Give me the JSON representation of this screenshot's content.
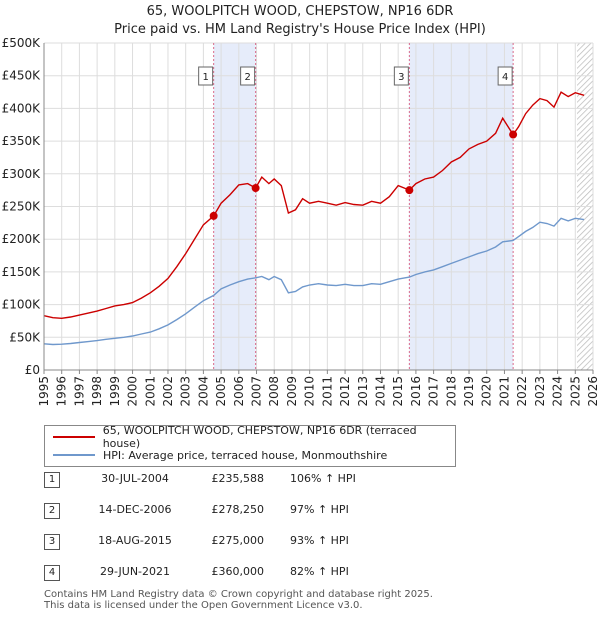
{
  "title_line1": "65, WOOLPITCH WOOD, CHEPSTOW, NP16 6DR",
  "title_line2": "Price paid vs. HM Land Registry's House Price Index (HPI)",
  "colors": {
    "price": "#cc0000",
    "hpi": "#6f98cc",
    "shade": "#e6ecfa",
    "marker_line": "#d96a8a"
  },
  "chart_data": {
    "type": "line",
    "y_tick_labels": [
      "£0",
      "£50K",
      "£100K",
      "£150K",
      "£200K",
      "£250K",
      "£300K",
      "£350K",
      "£400K",
      "£450K",
      "£500K"
    ],
    "y_ticks": [
      0,
      50000,
      100000,
      150000,
      200000,
      250000,
      300000,
      350000,
      400000,
      450000,
      500000
    ],
    "x_tick_labels": [
      "1995",
      "1996",
      "1997",
      "1998",
      "1999",
      "2000",
      "2001",
      "2002",
      "2003",
      "2004",
      "2005",
      "2006",
      "2007",
      "2008",
      "2009",
      "2010",
      "2011",
      "2012",
      "2013",
      "2014",
      "2015",
      "2016",
      "2017",
      "2018",
      "2019",
      "2020",
      "2021",
      "2022",
      "2023",
      "2024",
      "2025",
      "2026"
    ],
    "xlim": [
      1995,
      2026
    ],
    "ylim": [
      0,
      500000
    ],
    "series": [
      {
        "name": "65, WOOLPITCH WOOD, CHEPSTOW, NP16 6DR (terraced house)",
        "points": [
          [
            1995.0,
            83000
          ],
          [
            1995.5,
            80000
          ],
          [
            1996.0,
            79000
          ],
          [
            1996.5,
            81000
          ],
          [
            1997.0,
            84000
          ],
          [
            1997.5,
            87000
          ],
          [
            1998.0,
            90000
          ],
          [
            1998.5,
            94000
          ],
          [
            1999.0,
            98000
          ],
          [
            1999.5,
            100000
          ],
          [
            2000.0,
            103000
          ],
          [
            2000.5,
            110000
          ],
          [
            2001.0,
            118000
          ],
          [
            2001.5,
            128000
          ],
          [
            2002.0,
            140000
          ],
          [
            2002.5,
            158000
          ],
          [
            2003.0,
            178000
          ],
          [
            2003.5,
            200000
          ],
          [
            2004.0,
            222000
          ],
          [
            2004.58,
            235588
          ],
          [
            2005.0,
            255000
          ],
          [
            2005.5,
            268000
          ],
          [
            2006.0,
            283000
          ],
          [
            2006.5,
            285000
          ],
          [
            2006.95,
            278250
          ],
          [
            2007.3,
            295000
          ],
          [
            2007.7,
            285000
          ],
          [
            2008.0,
            292000
          ],
          [
            2008.4,
            282000
          ],
          [
            2008.8,
            240000
          ],
          [
            2009.2,
            245000
          ],
          [
            2009.6,
            262000
          ],
          [
            2010.0,
            255000
          ],
          [
            2010.5,
            258000
          ],
          [
            2011.0,
            255000
          ],
          [
            2011.5,
            252000
          ],
          [
            2012.0,
            256000
          ],
          [
            2012.5,
            253000
          ],
          [
            2013.0,
            252000
          ],
          [
            2013.5,
            258000
          ],
          [
            2014.0,
            255000
          ],
          [
            2014.5,
            265000
          ],
          [
            2015.0,
            282000
          ],
          [
            2015.63,
            275000
          ],
          [
            2016.0,
            285000
          ],
          [
            2016.5,
            292000
          ],
          [
            2017.0,
            295000
          ],
          [
            2017.5,
            305000
          ],
          [
            2018.0,
            318000
          ],
          [
            2018.5,
            325000
          ],
          [
            2019.0,
            338000
          ],
          [
            2019.5,
            345000
          ],
          [
            2020.0,
            350000
          ],
          [
            2020.5,
            362000
          ],
          [
            2020.9,
            385000
          ],
          [
            2021.49,
            360000
          ],
          [
            2021.8,
            372000
          ],
          [
            2022.2,
            392000
          ],
          [
            2022.6,
            405000
          ],
          [
            2023.0,
            415000
          ],
          [
            2023.4,
            412000
          ],
          [
            2023.8,
            402000
          ],
          [
            2024.2,
            425000
          ],
          [
            2024.6,
            418000
          ],
          [
            2025.0,
            424000
          ],
          [
            2025.5,
            420000
          ]
        ]
      },
      {
        "name": "HPI: Average price, terraced house, Monmouthshire",
        "points": [
          [
            1995.0,
            40000
          ],
          [
            1995.5,
            39000
          ],
          [
            1996.0,
            39500
          ],
          [
            1996.5,
            40500
          ],
          [
            1997.0,
            42000
          ],
          [
            1997.5,
            43500
          ],
          [
            1998.0,
            45000
          ],
          [
            1998.5,
            47000
          ],
          [
            1999.0,
            48500
          ],
          [
            1999.5,
            50000
          ],
          [
            2000.0,
            52000
          ],
          [
            2000.5,
            55000
          ],
          [
            2001.0,
            58000
          ],
          [
            2001.5,
            63000
          ],
          [
            2002.0,
            69000
          ],
          [
            2002.5,
            77000
          ],
          [
            2003.0,
            86000
          ],
          [
            2003.5,
            96000
          ],
          [
            2004.0,
            106000
          ],
          [
            2004.58,
            114000
          ],
          [
            2005.0,
            124000
          ],
          [
            2005.5,
            130000
          ],
          [
            2006.0,
            135000
          ],
          [
            2006.5,
            139000
          ],
          [
            2006.95,
            141000
          ],
          [
            2007.3,
            143000
          ],
          [
            2007.7,
            138000
          ],
          [
            2008.0,
            143000
          ],
          [
            2008.4,
            138000
          ],
          [
            2008.8,
            118000
          ],
          [
            2009.2,
            120000
          ],
          [
            2009.6,
            127000
          ],
          [
            2010.0,
            130000
          ],
          [
            2010.5,
            132000
          ],
          [
            2011.0,
            130000
          ],
          [
            2011.5,
            129000
          ],
          [
            2012.0,
            131000
          ],
          [
            2012.5,
            129000
          ],
          [
            2013.0,
            129000
          ],
          [
            2013.5,
            132000
          ],
          [
            2014.0,
            131000
          ],
          [
            2014.5,
            135000
          ],
          [
            2015.0,
            139000
          ],
          [
            2015.63,
            142000
          ],
          [
            2016.0,
            146000
          ],
          [
            2016.5,
            150000
          ],
          [
            2017.0,
            153000
          ],
          [
            2017.5,
            158000
          ],
          [
            2018.0,
            163000
          ],
          [
            2018.5,
            168000
          ],
          [
            2019.0,
            173000
          ],
          [
            2019.5,
            178000
          ],
          [
            2020.0,
            182000
          ],
          [
            2020.5,
            188000
          ],
          [
            2020.9,
            196000
          ],
          [
            2021.49,
            198000
          ],
          [
            2021.8,
            204000
          ],
          [
            2022.2,
            212000
          ],
          [
            2022.6,
            218000
          ],
          [
            2023.0,
            226000
          ],
          [
            2023.4,
            224000
          ],
          [
            2023.8,
            220000
          ],
          [
            2024.2,
            232000
          ],
          [
            2024.6,
            228000
          ],
          [
            2025.0,
            232000
          ],
          [
            2025.5,
            230000
          ]
        ]
      }
    ],
    "shaded_ranges": [
      [
        2004.58,
        2006.95
      ],
      [
        2015.63,
        2021.49
      ]
    ],
    "hatched_from": 2025.1,
    "sales": [
      {
        "label": "1",
        "x": 2004.58,
        "y": 235588
      },
      {
        "label": "2",
        "x": 2006.95,
        "y": 278250
      },
      {
        "label": "3",
        "x": 2015.63,
        "y": 275000
      },
      {
        "label": "4",
        "x": 2021.49,
        "y": 360000
      }
    ]
  },
  "legend": {
    "price_label": "65, WOOLPITCH WOOD, CHEPSTOW, NP16 6DR (terraced house)",
    "hpi_label": "HPI: Average price, terraced house, Monmouthshire"
  },
  "sales_table": [
    {
      "num": "1",
      "date": "30-JUL-2004",
      "price": "£235,588",
      "hpi": "106% ↑ HPI"
    },
    {
      "num": "2",
      "date": "14-DEC-2006",
      "price": "£278,250",
      "hpi": "97% ↑ HPI"
    },
    {
      "num": "3",
      "date": "18-AUG-2015",
      "price": "£275,000",
      "hpi": "93% ↑ HPI"
    },
    {
      "num": "4",
      "date": "29-JUN-2021",
      "price": "£360,000",
      "hpi": "82% ↑ HPI"
    }
  ],
  "footer": {
    "line1": "Contains HM Land Registry data © Crown copyright and database right 2025.",
    "line2": "This data is licensed under the Open Government Licence v3.0."
  }
}
